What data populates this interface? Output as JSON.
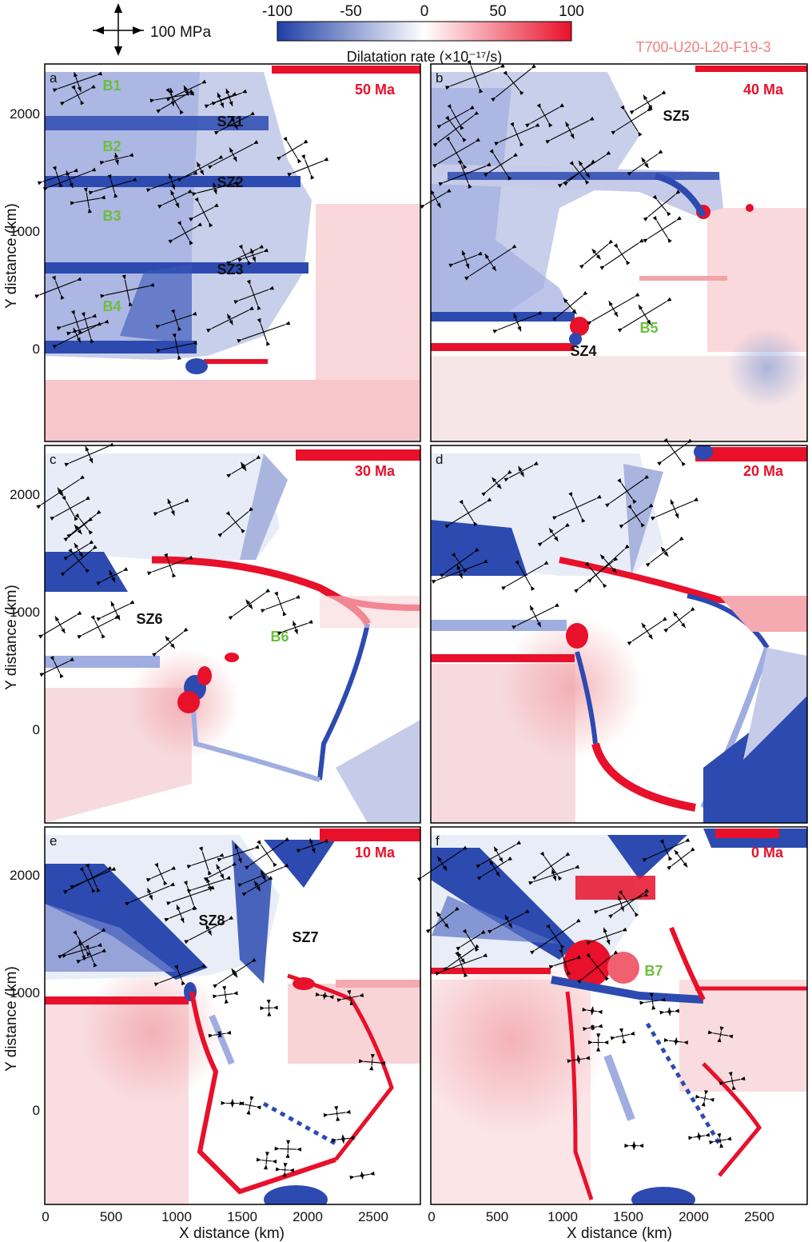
{
  "header": {
    "scale_label": "100 MPa",
    "model_id": "T700-U20-L20-F19-3",
    "colorbar": {
      "title": "Dilatation rate (×10⁻¹⁷/s)",
      "ticks": [
        "-100",
        "-50",
        "0",
        "50",
        "100"
      ],
      "color_low": "#1f3fa6",
      "color_mid": "#ffffff",
      "color_high": "#e8102a"
    }
  },
  "axes": {
    "x_label": "X distance (km)",
    "y_label": "Y distance (km)",
    "x_ticks": [
      "0",
      "500",
      "1000",
      "1500",
      "2000",
      "2500"
    ],
    "y_ticks": [
      "2000",
      "1000",
      "0"
    ]
  },
  "panels": [
    {
      "letter": "a",
      "age": "50 Ma",
      "labels": [
        {
          "text": "B1",
          "kind": "basin"
        },
        {
          "text": "B2",
          "kind": "basin"
        },
        {
          "text": "B3",
          "kind": "basin"
        },
        {
          "text": "B4",
          "kind": "basin"
        },
        {
          "text": "SZ1",
          "kind": "shear"
        },
        {
          "text": "SZ2",
          "kind": "shear"
        },
        {
          "text": "SZ3",
          "kind": "shear"
        }
      ]
    },
    {
      "letter": "b",
      "age": "40 Ma",
      "labels": [
        {
          "text": "SZ5",
          "kind": "shear"
        },
        {
          "text": "SZ4",
          "kind": "shear"
        },
        {
          "text": "B5",
          "kind": "basin"
        }
      ]
    },
    {
      "letter": "c",
      "age": "30 Ma",
      "labels": [
        {
          "text": "SZ6",
          "kind": "shear"
        },
        {
          "text": "B6",
          "kind": "basin"
        }
      ]
    },
    {
      "letter": "d",
      "age": "20 Ma",
      "labels": []
    },
    {
      "letter": "e",
      "age": "10 Ma",
      "labels": [
        {
          "text": "SZ8",
          "kind": "shear"
        },
        {
          "text": "SZ7",
          "kind": "shear"
        }
      ]
    },
    {
      "letter": "f",
      "age": "0 Ma",
      "labels": [
        {
          "text": "B7",
          "kind": "basin"
        }
      ]
    }
  ],
  "colors": {
    "basin_label": "#6bbf3a",
    "age_label": "#e8102a",
    "model_id": "#f08080",
    "shear_label": "#111111",
    "frame": "#000000"
  }
}
